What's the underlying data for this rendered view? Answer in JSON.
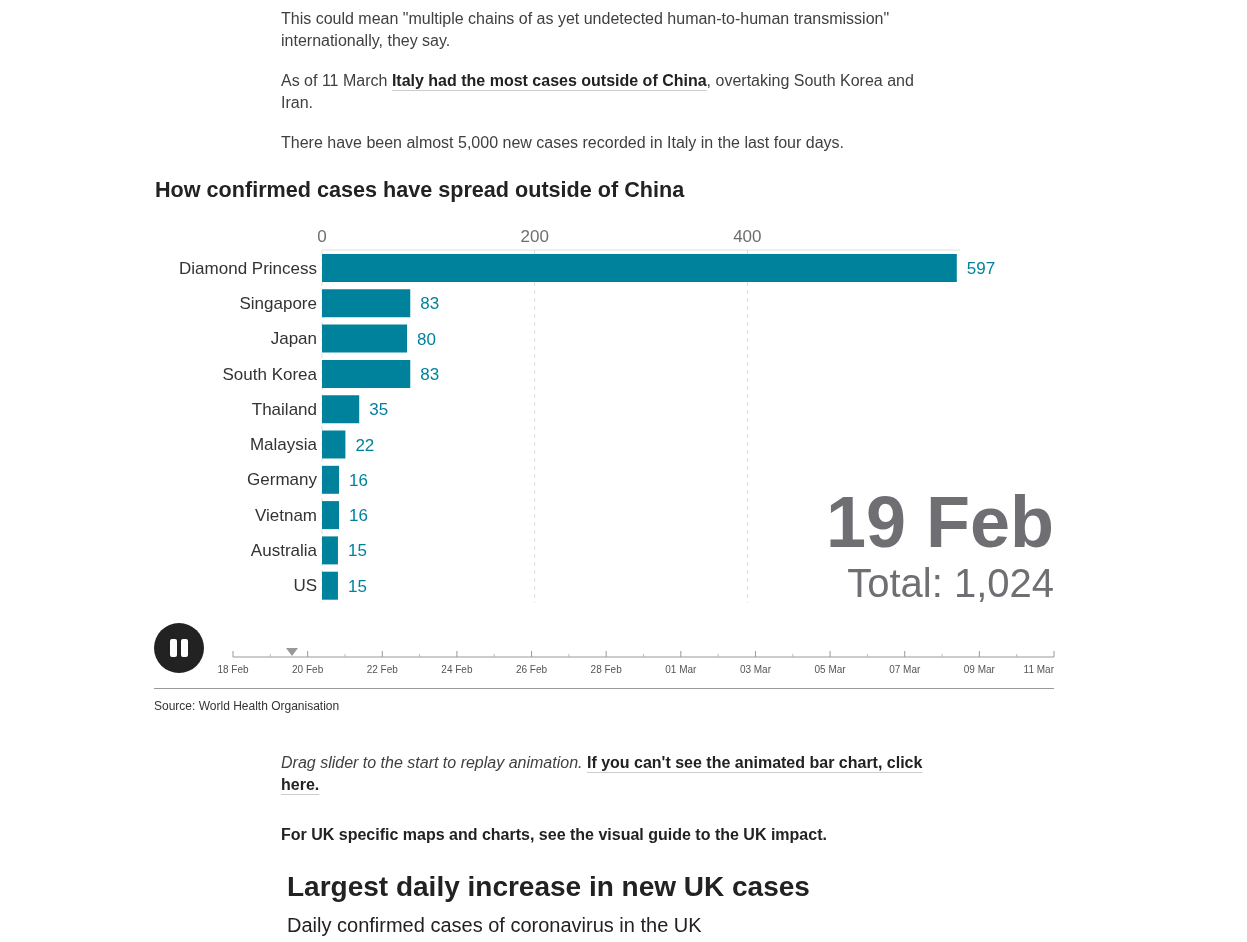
{
  "chart_data": {
    "type": "bar",
    "orientation": "horizontal",
    "title": "How confirmed cases have spread outside of China",
    "categories": [
      "Diamond Princess",
      "Singapore",
      "Japan",
      "South Korea",
      "Thailand",
      "Malaysia",
      "Germany",
      "Vietnam",
      "Australia",
      "US"
    ],
    "values": [
      597,
      83,
      80,
      83,
      35,
      22,
      16,
      16,
      15,
      15
    ],
    "color": "#00829c",
    "data_labels": true,
    "xlim": [
      0,
      600
    ],
    "xticks": [
      0,
      200,
      400
    ],
    "grid": "x",
    "annotations": [
      "This could mean \"multiple chains of as yet undetected human-to-human transmission\" internationally, they say.",
      "As of 11 March",
      "Italy had the most cases outside of China",
      ", overtaking South Korea and Iran.",
      "There have been almost 5,000 new cases recorded in Italy in the last four days.",
      "19 Feb",
      "Total: 1,024",
      "18 Feb",
      "20 Feb",
      "22 Feb",
      "24 Feb",
      "26 Feb",
      "28 Feb",
      "01 Mar",
      "03 Mar",
      "05 Mar",
      "07 Mar",
      "09 Mar",
      "11 Mar",
      "Source: World Health Organisation",
      "Drag slider to the start to replay animation.",
      "If you can't see the animated bar chart, click",
      "here.",
      "For UK specific maps and charts, see the visual guide to the UK impact.",
      "Largest daily increase in new UK cases",
      "Daily confirmed cases of coronavirus in the UK"
    ]
  }
}
